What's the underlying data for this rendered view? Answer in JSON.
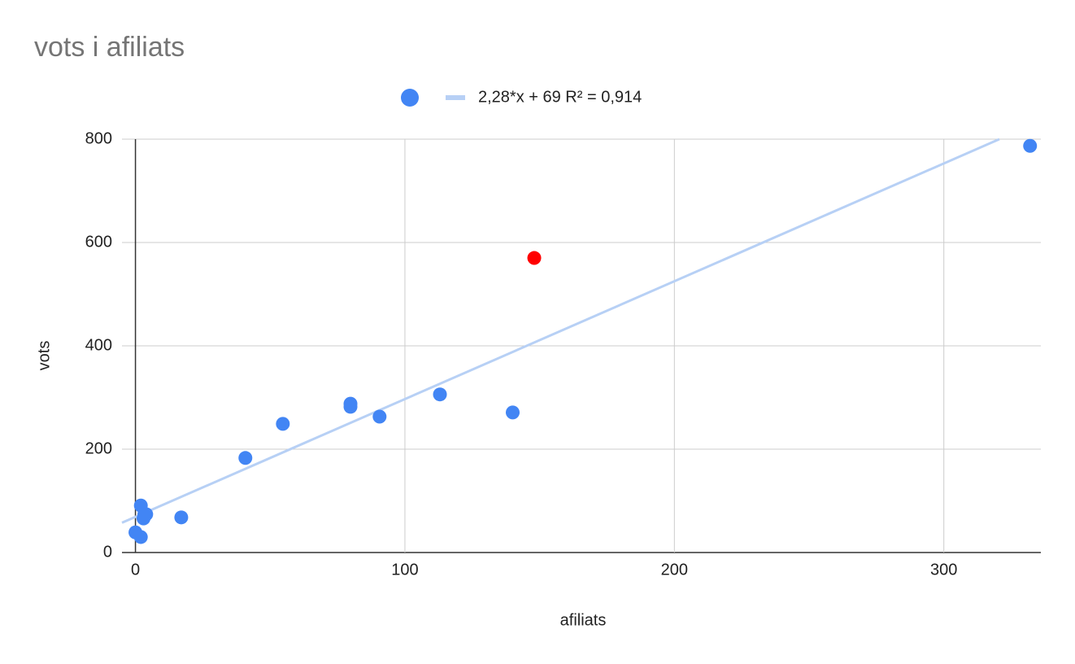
{
  "chart_data": {
    "type": "scatter",
    "title": "vots i afiliats",
    "x_label": "afiliats",
    "y_label": "vots",
    "series": [
      {
        "color": "#4285f4",
        "x": [
          0,
          2,
          2,
          3.3,
          3,
          4,
          17,
          40.8,
          54.7,
          79.8,
          79.8,
          90.6,
          113,
          140,
          148,
          332
        ],
        "values": [
          39,
          30,
          91,
          74,
          66,
          74,
          68,
          183,
          249,
          288,
          282,
          263,
          306,
          271,
          570,
          787
        ],
        "point_colors": [
          "#4285f4",
          "#4285f4",
          "#4285f4",
          "#4285f4",
          "#4285f4",
          "#4285f4",
          "#4285f4",
          "#4285f4",
          "#4285f4",
          "#4285f4",
          "#4285f4",
          "#4285f4",
          "#4285f4",
          "#4285f4",
          "#ff0000",
          "#4285f4"
        ]
      }
    ],
    "trendline": {
      "label": "2,28*x + 69 R² = 0,914",
      "slope": 2.28,
      "intercept": 69,
      "color": "#b7d0f5"
    },
    "xlim": [
      -5,
      336
    ],
    "ylim": [
      0,
      800
    ],
    "xticks": [
      0,
      100,
      200,
      300
    ],
    "yticks": [
      0,
      200,
      400,
      600,
      800
    ],
    "grid": true
  }
}
